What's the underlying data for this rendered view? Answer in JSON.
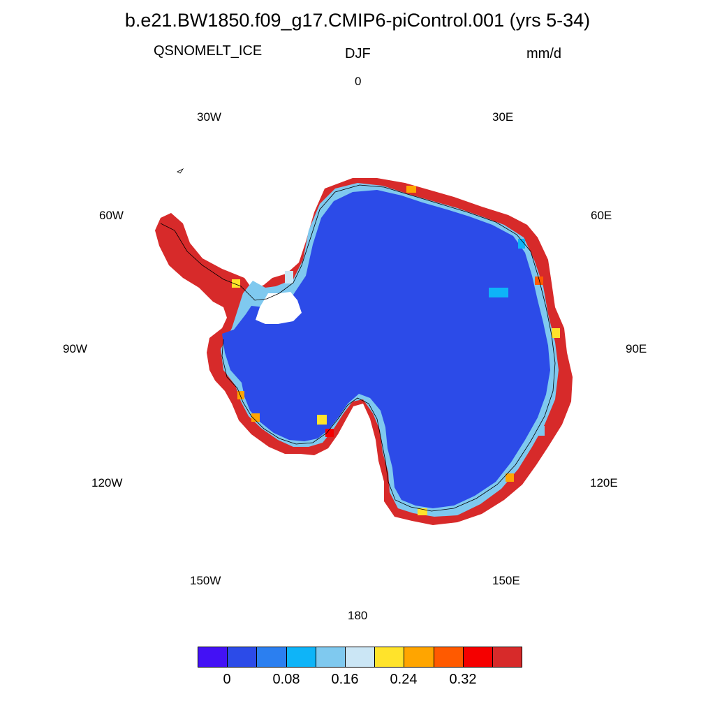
{
  "title": "b.e21.BW1850.f09_g17.CMIP6-piControl.001 (yrs 5-34)",
  "variable": "QSNOMELT_ICE",
  "season": "DJF",
  "units": "mm/d",
  "longitude_labels": {
    "lon_0": "0",
    "lon_30e": "30E",
    "lon_60e": "60E",
    "lon_90e": "90E",
    "lon_120e": "120E",
    "lon_150e": "150E",
    "lon_180": "180",
    "lon_150w": "150W",
    "lon_120w": "120W",
    "lon_90w": "90W",
    "lon_60w": "60W",
    "lon_30w": "30W"
  },
  "colorbar": {
    "colors": [
      "#4311f5",
      "#2c4be8",
      "#2b7ff0",
      "#0eb4f8",
      "#7fc9ef",
      "#cbe6f5",
      "#ffe32b",
      "#ffa500",
      "#ff5a00",
      "#f50000",
      "#d72a2a"
    ],
    "labels": [
      "0",
      "0.08",
      "0.16",
      "0.24",
      "0.32"
    ]
  },
  "colors": {
    "ice_interior": "#2c4be8",
    "coast_high": "#d72a2a"
  }
}
